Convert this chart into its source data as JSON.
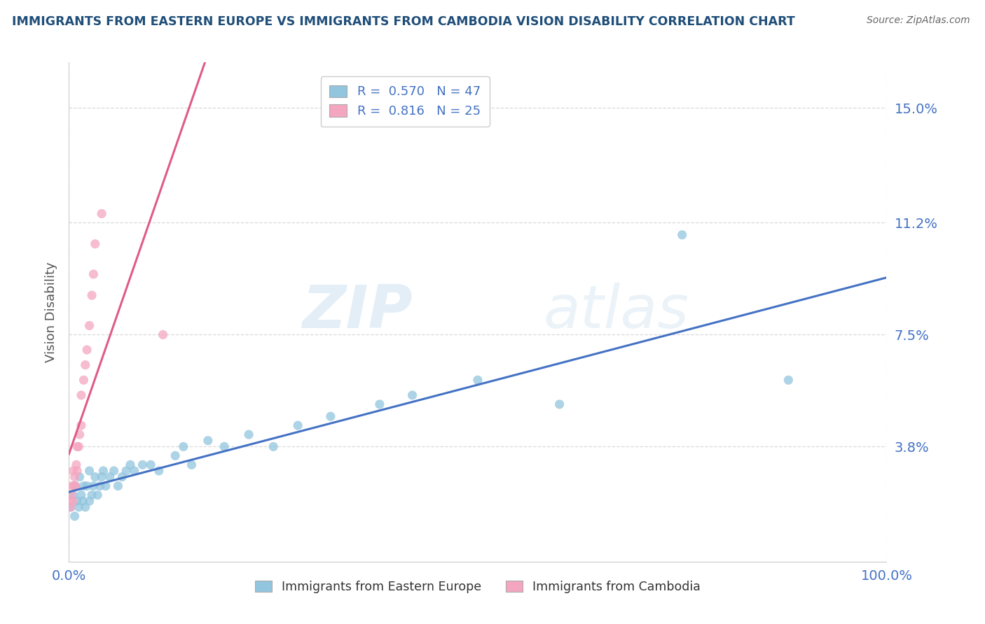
{
  "title": "IMMIGRANTS FROM EASTERN EUROPE VS IMMIGRANTS FROM CAMBODIA VISION DISABILITY CORRELATION CHART",
  "source": "Source: ZipAtlas.com",
  "ylabel": "Vision Disability",
  "watermark": "ZIPatlas",
  "legend_labels": [
    "Immigrants from Eastern Europe",
    "Immigrants from Cambodia"
  ],
  "R1": 0.57,
  "N1": 47,
  "R2": 0.816,
  "N2": 25,
  "color1": "#92c5de",
  "color2": "#f4a6c0",
  "trendline1_color": "#4472c4",
  "trendline2_color": "#e05a8a",
  "title_color": "#1f4e79",
  "axis_color": "#4472c4",
  "grid_color": "#d9d9d9",
  "ytick_labels": [
    "3.8%",
    "7.5%",
    "11.2%",
    "15.0%"
  ],
  "ytick_values": [
    0.038,
    0.075,
    0.112,
    0.15
  ],
  "xmin": 0.0,
  "xmax": 1.0,
  "ymin": 0.0,
  "ymax": 0.165,
  "scatter1_x": [
    0.002,
    0.005,
    0.007,
    0.008,
    0.01,
    0.012,
    0.013,
    0.015,
    0.017,
    0.018,
    0.02,
    0.022,
    0.025,
    0.025,
    0.028,
    0.03,
    0.032,
    0.035,
    0.038,
    0.04,
    0.042,
    0.045,
    0.05,
    0.055,
    0.06,
    0.065,
    0.07,
    0.075,
    0.08,
    0.09,
    0.1,
    0.11,
    0.13,
    0.14,
    0.15,
    0.17,
    0.19,
    0.22,
    0.25,
    0.28,
    0.32,
    0.38,
    0.42,
    0.5,
    0.6,
    0.75,
    0.88
  ],
  "scatter1_y": [
    0.018,
    0.022,
    0.015,
    0.025,
    0.02,
    0.018,
    0.028,
    0.022,
    0.02,
    0.025,
    0.018,
    0.025,
    0.02,
    0.03,
    0.022,
    0.025,
    0.028,
    0.022,
    0.025,
    0.028,
    0.03,
    0.025,
    0.028,
    0.03,
    0.025,
    0.028,
    0.03,
    0.032,
    0.03,
    0.032,
    0.032,
    0.03,
    0.035,
    0.038,
    0.032,
    0.04,
    0.038,
    0.042,
    0.038,
    0.045,
    0.048,
    0.052,
    0.055,
    0.06,
    0.052,
    0.108,
    0.06
  ],
  "scatter2_x": [
    0.001,
    0.002,
    0.003,
    0.004,
    0.005,
    0.005,
    0.006,
    0.007,
    0.008,
    0.009,
    0.01,
    0.01,
    0.012,
    0.013,
    0.015,
    0.015,
    0.018,
    0.02,
    0.022,
    0.025,
    0.028,
    0.03,
    0.032,
    0.04,
    0.115
  ],
  "scatter2_y": [
    0.02,
    0.018,
    0.022,
    0.025,
    0.02,
    0.03,
    0.025,
    0.028,
    0.025,
    0.032,
    0.03,
    0.038,
    0.038,
    0.042,
    0.045,
    0.055,
    0.06,
    0.065,
    0.07,
    0.078,
    0.088,
    0.095,
    0.105,
    0.115,
    0.075
  ],
  "trend2_xmin": 0.0,
  "trend2_xmax": 0.25,
  "trend2_xdash_start": 0.25,
  "trend2_xdash_end": 0.5
}
